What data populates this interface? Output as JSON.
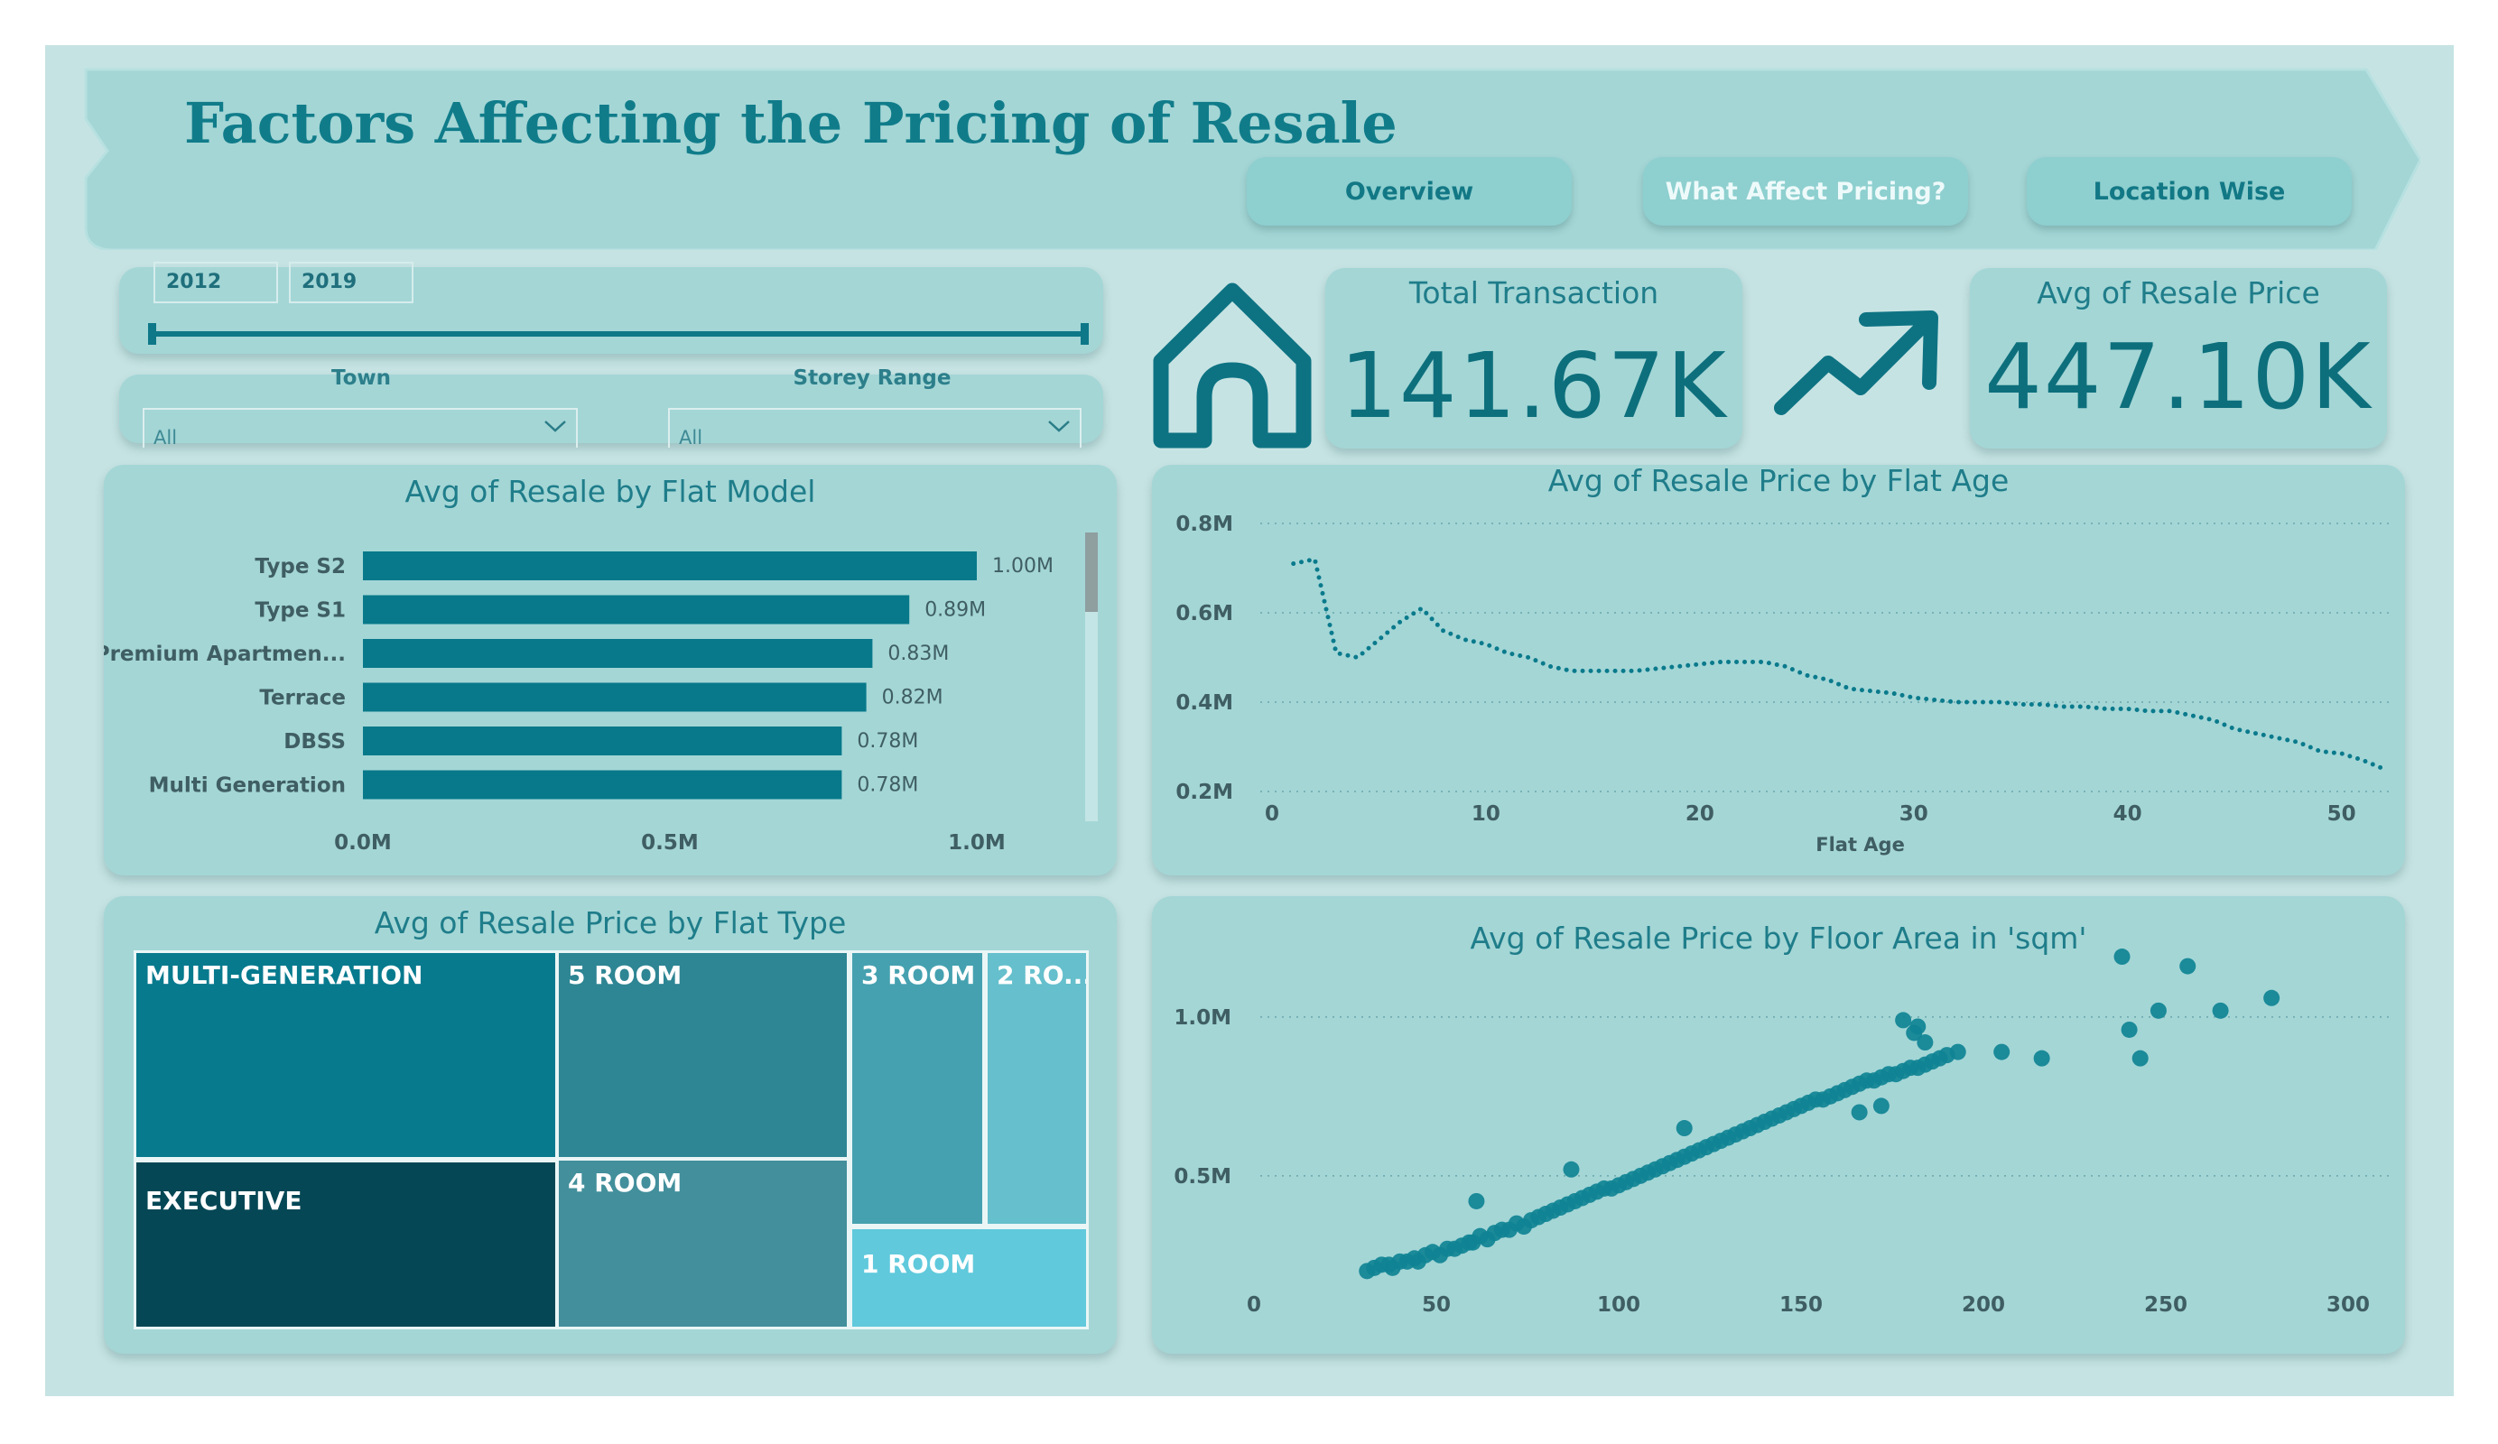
{
  "header": {
    "title": "Factors Affecting the Pricing of Resale",
    "nav": [
      {
        "label": "Overview"
      },
      {
        "label": "What Affect Pricing?"
      },
      {
        "label": "Location Wise"
      }
    ]
  },
  "year_slicer": {
    "start": "2012",
    "end": "2019"
  },
  "filters": {
    "town": {
      "label": "Town",
      "value": "All"
    },
    "storey": {
      "label": "Storey Range",
      "value": "All"
    }
  },
  "kpis": {
    "total_transaction": {
      "label": "Total Transaction",
      "value": "141.67K"
    },
    "avg_resale_price": {
      "label": "Avg of Resale Price",
      "value": "447.10K"
    }
  },
  "icons": {
    "house": "house-icon",
    "trend": "trend-up-icon"
  },
  "colors": {
    "accent": "#0a7a8c",
    "panel": "#a4d6d6",
    "background": "#c6e3e3"
  },
  "chart_data": [
    {
      "type": "bar",
      "title": "Avg of Resale by Flat Model",
      "categories": [
        "Type S2",
        "Type S1",
        "Premium Apartmen...",
        "Terrace",
        "DBSS",
        "Multi Generation"
      ],
      "values": [
        1.0,
        0.89,
        0.83,
        0.82,
        0.78,
        0.78
      ],
      "data_labels": [
        "1.00M",
        "0.89M",
        "0.83M",
        "0.82M",
        "0.78M",
        "0.78M"
      ],
      "xlim": [
        0,
        1.0
      ],
      "ticks": [
        "0.0M",
        "0.5M",
        "1.0M"
      ],
      "orientation": "horizontal"
    },
    {
      "type": "line",
      "title": "Avg of Resale Price by Flat Age",
      "xlabel": "Flat Age",
      "xlim": [
        0,
        52
      ],
      "ylim": [
        0.2,
        0.8
      ],
      "x_ticks": [
        0,
        10,
        20,
        30,
        40,
        50
      ],
      "y_ticks": [
        "0.2M",
        "0.4M",
        "0.6M",
        "0.8M"
      ],
      "x": [
        1,
        2,
        3,
        4,
        5,
        6,
        7,
        8,
        9,
        10,
        11,
        12,
        13,
        14,
        15,
        16,
        17,
        18,
        19,
        20,
        21,
        22,
        23,
        24,
        25,
        26,
        27,
        28,
        29,
        30,
        31,
        32,
        33,
        34,
        35,
        36,
        37,
        38,
        39,
        40,
        41,
        42,
        43,
        44,
        45,
        46,
        47,
        48,
        49,
        50,
        51,
        52
      ],
      "y": [
        0.71,
        0.72,
        0.51,
        0.5,
        0.54,
        0.58,
        0.61,
        0.56,
        0.54,
        0.53,
        0.51,
        0.5,
        0.48,
        0.47,
        0.47,
        0.47,
        0.47,
        0.475,
        0.48,
        0.485,
        0.49,
        0.49,
        0.49,
        0.48,
        0.46,
        0.45,
        0.43,
        0.425,
        0.42,
        0.41,
        0.405,
        0.4,
        0.4,
        0.4,
        0.395,
        0.395,
        0.39,
        0.39,
        0.385,
        0.385,
        0.38,
        0.38,
        0.37,
        0.36,
        0.34,
        0.33,
        0.32,
        0.31,
        0.29,
        0.285,
        0.27,
        0.25
      ],
      "grid": true
    },
    {
      "type": "heatmap",
      "title": "Avg of Resale Price by Flat Type",
      "cells": [
        {
          "label": "MULTI-GENERATION",
          "color": "#077a8e"
        },
        {
          "label": "5 ROOM",
          "color": "#2e8593"
        },
        {
          "label": "3 ROOM",
          "color": "#45a1b0"
        },
        {
          "label": "2 RO...",
          "color": "#65bfcc"
        },
        {
          "label": "EXECUTIVE",
          "color": "#054755"
        },
        {
          "label": "4 ROOM",
          "color": "#438f9c"
        },
        {
          "label": "1 ROOM",
          "color": "#60c9dc"
        }
      ]
    },
    {
      "type": "scatter",
      "title": "Avg of Resale Price by Floor Area in 'sqm'",
      "xlim": [
        0,
        300
      ],
      "ylim": [
        0.13,
        1.21
      ],
      "x_ticks": [
        0,
        50,
        100,
        150,
        200,
        250,
        300
      ],
      "y_ticks": [
        "0.5M",
        "1.0M"
      ],
      "x": [
        31,
        33,
        35,
        37,
        38,
        40,
        42,
        44,
        45,
        47,
        49,
        51,
        53,
        55,
        57,
        59,
        60,
        62,
        64,
        66,
        68,
        70,
        72,
        74,
        76,
        78,
        80,
        82,
        84,
        86,
        88,
        90,
        92,
        94,
        96,
        98,
        100,
        102,
        104,
        106,
        108,
        110,
        112,
        114,
        116,
        118,
        120,
        122,
        124,
        126,
        128,
        130,
        132,
        134,
        136,
        138,
        140,
        142,
        144,
        146,
        148,
        150,
        152,
        154,
        156,
        158,
        160,
        162,
        164,
        166,
        168,
        170,
        172,
        174,
        176,
        178,
        180,
        182,
        184,
        186,
        188,
        190,
        61,
        87,
        118,
        178,
        182,
        193,
        205,
        216,
        238,
        240,
        243,
        248,
        256,
        265,
        279,
        181,
        184,
        172,
        166
      ],
      "y": [
        0.2,
        0.21,
        0.22,
        0.22,
        0.21,
        0.23,
        0.23,
        0.24,
        0.23,
        0.25,
        0.26,
        0.25,
        0.27,
        0.27,
        0.28,
        0.29,
        0.29,
        0.31,
        0.3,
        0.32,
        0.33,
        0.33,
        0.35,
        0.34,
        0.36,
        0.37,
        0.38,
        0.39,
        0.4,
        0.41,
        0.42,
        0.43,
        0.44,
        0.45,
        0.46,
        0.46,
        0.47,
        0.48,
        0.49,
        0.5,
        0.51,
        0.52,
        0.53,
        0.54,
        0.55,
        0.56,
        0.57,
        0.58,
        0.59,
        0.6,
        0.61,
        0.62,
        0.63,
        0.64,
        0.65,
        0.66,
        0.67,
        0.68,
        0.69,
        0.7,
        0.71,
        0.72,
        0.73,
        0.74,
        0.74,
        0.75,
        0.76,
        0.77,
        0.78,
        0.79,
        0.8,
        0.8,
        0.81,
        0.82,
        0.82,
        0.83,
        0.84,
        0.84,
        0.85,
        0.86,
        0.87,
        0.88,
        0.42,
        0.52,
        0.65,
        0.99,
        0.97,
        0.89,
        0.89,
        0.87,
        1.19,
        0.96,
        0.87,
        1.02,
        1.16,
        1.02,
        1.06,
        0.95,
        0.92,
        0.72,
        0.7
      ],
      "grid": true
    }
  ]
}
